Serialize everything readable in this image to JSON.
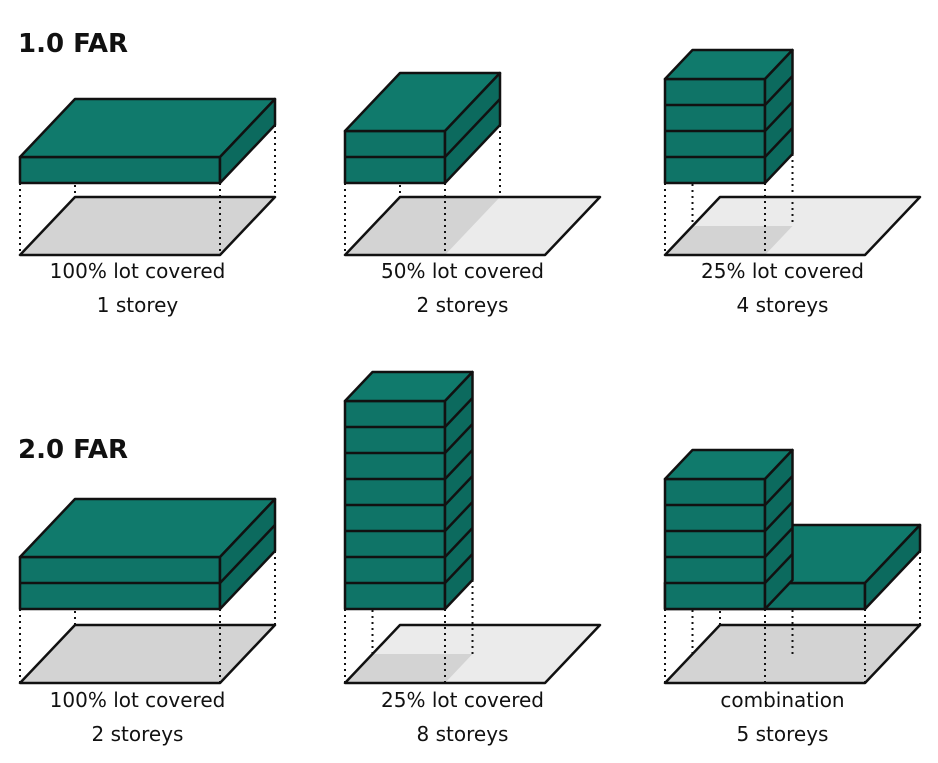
{
  "sections": [
    {
      "label": "1.0 FAR",
      "panels": [
        {
          "coverage": "100% lot covered",
          "storeys": "1 storey"
        },
        {
          "coverage": "50% lot covered",
          "storeys": "2 storeys"
        },
        {
          "coverage": "25% lot covered",
          "storeys": "4 storeys"
        }
      ]
    },
    {
      "label": "2.0 FAR",
      "panels": [
        {
          "coverage": "100% lot covered",
          "storeys": "2 storeys"
        },
        {
          "coverage": "25% lot covered",
          "storeys": "8 storeys"
        },
        {
          "coverage": "combination",
          "storeys": "5 storeys"
        }
      ]
    }
  ]
}
